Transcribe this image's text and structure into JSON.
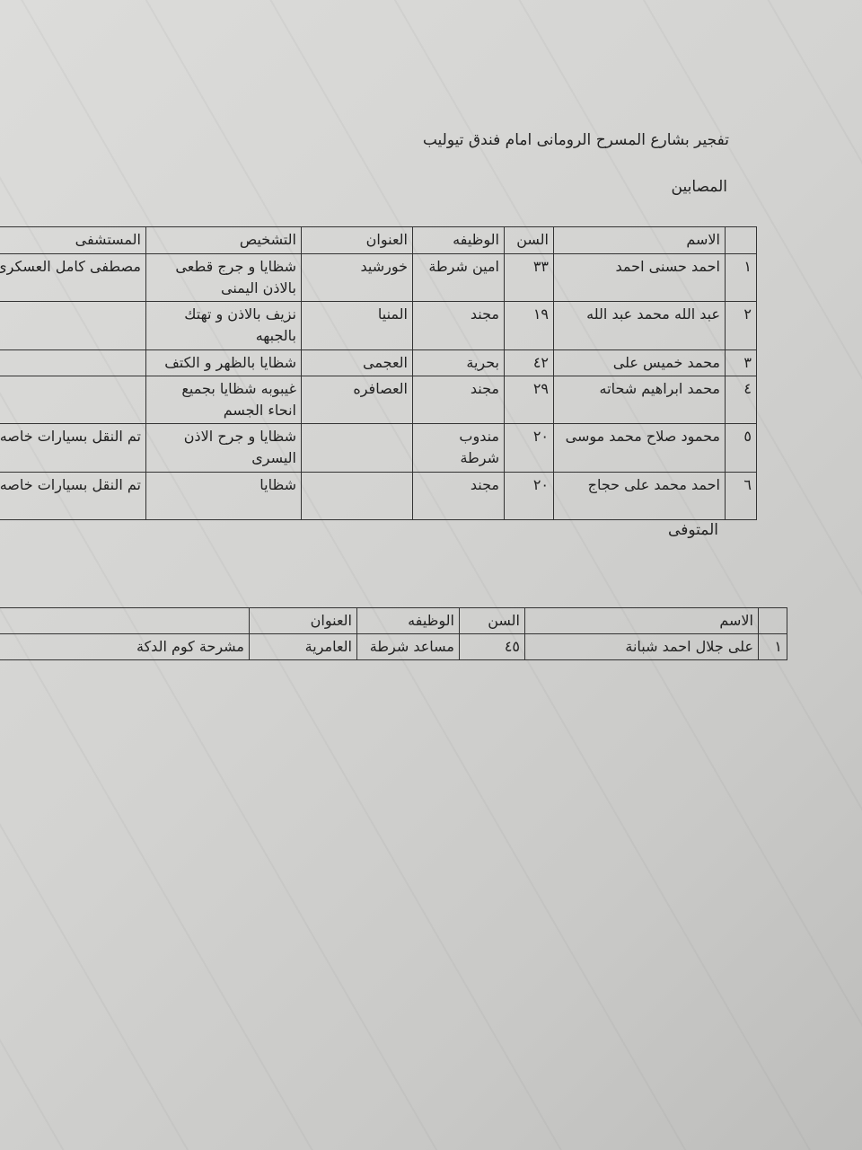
{
  "title": "تفجير بشارع المسرح الرومانى امام فندق تيوليب",
  "injured": {
    "heading": "المصابين",
    "headers": [
      "",
      "الاسم",
      "السن",
      "الوظيفه",
      "العنوان",
      "التشخيص",
      "المستشفى"
    ],
    "rows": [
      [
        "١",
        "احمد حسنى احمد",
        "٣٣",
        "امين شرطة",
        "خورشيد",
        "شظايا و جرج قطعى بالاذن اليمنى",
        "مصطفى كامل العسكرى"
      ],
      [
        "٢",
        "عبد الله محمد عبد الله",
        "١٩",
        "مجند",
        "المنيا",
        "نزيف بالاذن و تهتك بالجبهه",
        ""
      ],
      [
        "٣",
        "محمد خميس على",
        "٤٢",
        "بحرية",
        "العجمى",
        "شظايا بالظهر و الكتف",
        ""
      ],
      [
        "٤",
        "محمد ابراهيم شحاته",
        "٢٩",
        "مجند",
        "العصافره",
        "غيبوبه شظايا بجميع انحاء الجسم",
        ""
      ],
      [
        "٥",
        "محمود صلاح محمد موسى",
        "٢٠",
        "مندوب شرطة",
        "",
        "شظايا و جرح الاذن اليسرى",
        "تم النقل بسيارات خاصه"
      ],
      [
        "٦",
        "احمد محمد على حجاج",
        "٢٠",
        "مجند",
        "",
        "شظايا",
        "تم النقل بسيارات خاصه"
      ]
    ]
  },
  "deceased": {
    "heading": "المتوفى",
    "headers": [
      "",
      "الاسم",
      "السن",
      "الوظيفه",
      "العنوان",
      ""
    ],
    "rows": [
      [
        "١",
        "على جلال احمد شبانة",
        "٤٥",
        "مساعد شرطة",
        "العامرية",
        "مشرحة كوم الدكة"
      ]
    ]
  }
}
